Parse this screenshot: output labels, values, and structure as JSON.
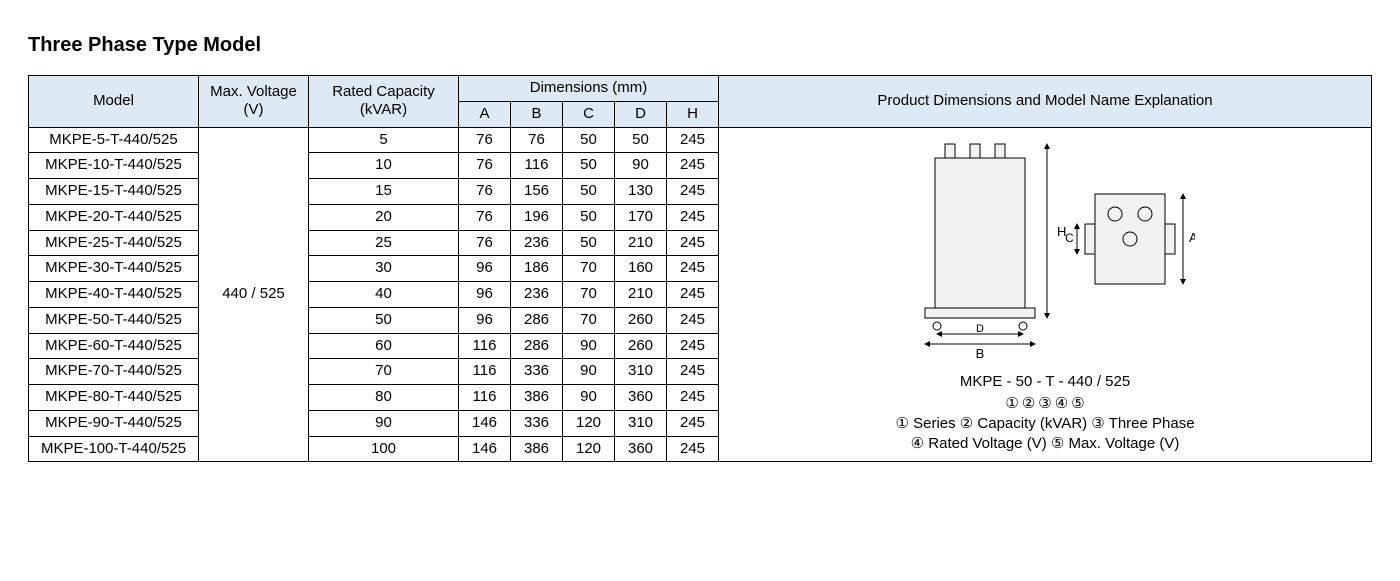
{
  "title": "Three Phase Type Model",
  "table": {
    "columns": {
      "model": "Model",
      "voltage": "Max. Voltage (V)",
      "capacity": "Rated Capacity (kVAR)",
      "dimensions_group": "Dimensions (mm)",
      "dim_labels": [
        "A",
        "B",
        "C",
        "D",
        "H"
      ],
      "explanation": "Product Dimensions and Model Name Explanation"
    },
    "col_widths": {
      "model": 170,
      "voltage": 110,
      "capacity": 150,
      "dim": 52,
      "explanation": 480
    },
    "header_bg": "#dde9f3",
    "border_color": "#000000",
    "voltage_value": "440 / 525",
    "rows": [
      {
        "model": "MKPE-5-T-440/525",
        "capacity": "5",
        "A": "76",
        "B": "76",
        "C": "50",
        "D": "50",
        "H": "245"
      },
      {
        "model": "MKPE-10-T-440/525",
        "capacity": "10",
        "A": "76",
        "B": "116",
        "C": "50",
        "D": "90",
        "H": "245"
      },
      {
        "model": "MKPE-15-T-440/525",
        "capacity": "15",
        "A": "76",
        "B": "156",
        "C": "50",
        "D": "130",
        "H": "245"
      },
      {
        "model": "MKPE-20-T-440/525",
        "capacity": "20",
        "A": "76",
        "B": "196",
        "C": "50",
        "D": "170",
        "H": "245"
      },
      {
        "model": "MKPE-25-T-440/525",
        "capacity": "25",
        "A": "76",
        "B": "236",
        "C": "50",
        "D": "210",
        "H": "245"
      },
      {
        "model": "MKPE-30-T-440/525",
        "capacity": "30",
        "A": "96",
        "B": "186",
        "C": "70",
        "D": "160",
        "H": "245"
      },
      {
        "model": "MKPE-40-T-440/525",
        "capacity": "40",
        "A": "96",
        "B": "236",
        "C": "70",
        "D": "210",
        "H": "245"
      },
      {
        "model": "MKPE-50-T-440/525",
        "capacity": "50",
        "A": "96",
        "B": "286",
        "C": "70",
        "D": "260",
        "H": "245"
      },
      {
        "model": "MKPE-60-T-440/525",
        "capacity": "60",
        "A": "116",
        "B": "286",
        "C": "90",
        "D": "260",
        "H": "245"
      },
      {
        "model": "MKPE-70-T-440/525",
        "capacity": "70",
        "A": "116",
        "B": "336",
        "C": "90",
        "D": "310",
        "H": "245"
      },
      {
        "model": "MKPE-80-T-440/525",
        "capacity": "80",
        "A": "116",
        "B": "386",
        "C": "90",
        "D": "360",
        "H": "245"
      },
      {
        "model": "MKPE-90-T-440/525",
        "capacity": "90",
        "A": "146",
        "B": "336",
        "C": "120",
        "D": "310",
        "H": "245"
      },
      {
        "model": "MKPE-100-T-440/525",
        "capacity": "100",
        "A": "146",
        "B": "386",
        "C": "120",
        "D": "360",
        "H": "245"
      }
    ],
    "diagram": {
      "labels": {
        "A": "A",
        "B": "B",
        "C": "C",
        "D": "D",
        "H": "H"
      },
      "fill": "#f2f2f2",
      "stroke": "#000000",
      "arrow": "#000000"
    },
    "explanation_detail": {
      "sample": "MKPE - 50 - T - 440 / 525",
      "pieces": [
        "①",
        "②",
        "③",
        "④",
        "⑤"
      ],
      "lines": [
        "① Series  ② Capacity (kVAR)  ③ Three Phase",
        "④ Rated Voltage (V)  ⑤ Max. Voltage (V)"
      ]
    }
  }
}
